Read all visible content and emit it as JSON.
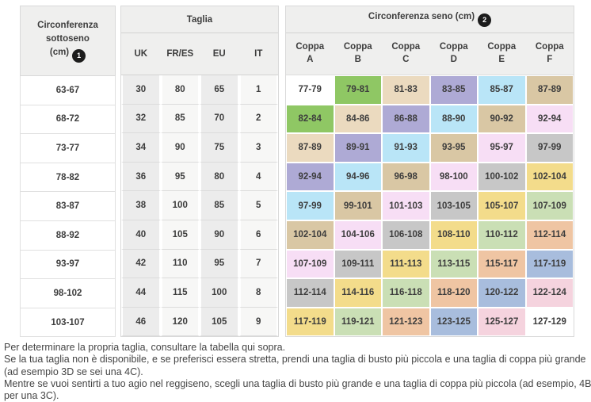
{
  "table": {
    "sottoseno_header": {
      "line1": "Circonferenza",
      "line2": "sottoseno",
      "line3": "(cm)",
      "badge": "1"
    },
    "taglia_title": "Taglia",
    "taglia_cols": [
      "UK",
      "FR/ES",
      "EU",
      "IT"
    ],
    "seno_title": "Circonferenza seno (cm)",
    "seno_badge": "2",
    "coppa_word": "Coppa",
    "coppa_letters": [
      "A",
      "B",
      "C",
      "D",
      "E",
      "F"
    ],
    "rows": [
      {
        "sottoseno": "63-67",
        "taglia": [
          "30",
          "80",
          "65",
          "1"
        ],
        "coppe": [
          "77-79",
          "79-81",
          "81-83",
          "83-85",
          "85-87",
          "87-89"
        ]
      },
      {
        "sottoseno": "68-72",
        "taglia": [
          "32",
          "85",
          "70",
          "2"
        ],
        "coppe": [
          "82-84",
          "84-86",
          "86-88",
          "88-90",
          "90-92",
          "92-94"
        ]
      },
      {
        "sottoseno": "73-77",
        "taglia": [
          "34",
          "90",
          "75",
          "3"
        ],
        "coppe": [
          "87-89",
          "89-91",
          "91-93",
          "93-95",
          "95-97",
          "97-99"
        ]
      },
      {
        "sottoseno": "78-82",
        "taglia": [
          "36",
          "95",
          "80",
          "4"
        ],
        "coppe": [
          "92-94",
          "94-96",
          "96-98",
          "98-100",
          "100-102",
          "102-104"
        ]
      },
      {
        "sottoseno": "83-87",
        "taglia": [
          "38",
          "100",
          "85",
          "5"
        ],
        "coppe": [
          "97-99",
          "99-101",
          "101-103",
          "103-105",
          "105-107",
          "107-109"
        ]
      },
      {
        "sottoseno": "88-92",
        "taglia": [
          "40",
          "105",
          "90",
          "6"
        ],
        "coppe": [
          "102-104",
          "104-106",
          "106-108",
          "108-110",
          "110-112",
          "112-114"
        ]
      },
      {
        "sottoseno": "93-97",
        "taglia": [
          "42",
          "110",
          "95",
          "7"
        ],
        "coppe": [
          "107-109",
          "109-111",
          "111-113",
          "113-115",
          "115-117",
          "117-119"
        ]
      },
      {
        "sottoseno": "98-102",
        "taglia": [
          "44",
          "115",
          "100",
          "8"
        ],
        "coppe": [
          "112-114",
          "114-116",
          "116-118",
          "118-120",
          "120-122",
          "122-124"
        ]
      },
      {
        "sottoseno": "103-107",
        "taglia": [
          "46",
          "120",
          "105",
          "9"
        ],
        "coppe": [
          "117-119",
          "119-121",
          "121-123",
          "123-125",
          "125-127",
          "127-129"
        ]
      }
    ]
  },
  "colors": {
    "header_bg": "#efefee",
    "border": "#d9d9d9",
    "badge_bg": "#1c1c1c",
    "taglia_col_shaded": "#ececec",
    "taglia_col_light": "#f7f7f6",
    "cell_palette": [
      "#ffffff",
      "#8fc764",
      "#ebdabf",
      "#aeaad5",
      "#b9e5f7",
      "#d9c7a4",
      "#f7def5",
      "#c7c7c7",
      "#f3dc8b",
      "#cadfb5",
      "#efc5a3",
      "#a8bddd",
      "#f5d3de",
      "#ffffff"
    ]
  },
  "footer": {
    "lines": [
      "Per determinare la propria taglia, consultare la tabella qui sopra.",
      "Se la tua taglia non è disponibile, e se preferisci essera stretta, prendi una taglia di busto più piccola e una taglia di coppa più grande (ad esempio 3D se sei una 4C).",
      "Mentre se vuoi sentirti a tuo agio nel reggiseno, scegli una taglia di busto più grande e una taglia di coppa più piccola (ad esempio, 4B per una 3C)."
    ]
  }
}
